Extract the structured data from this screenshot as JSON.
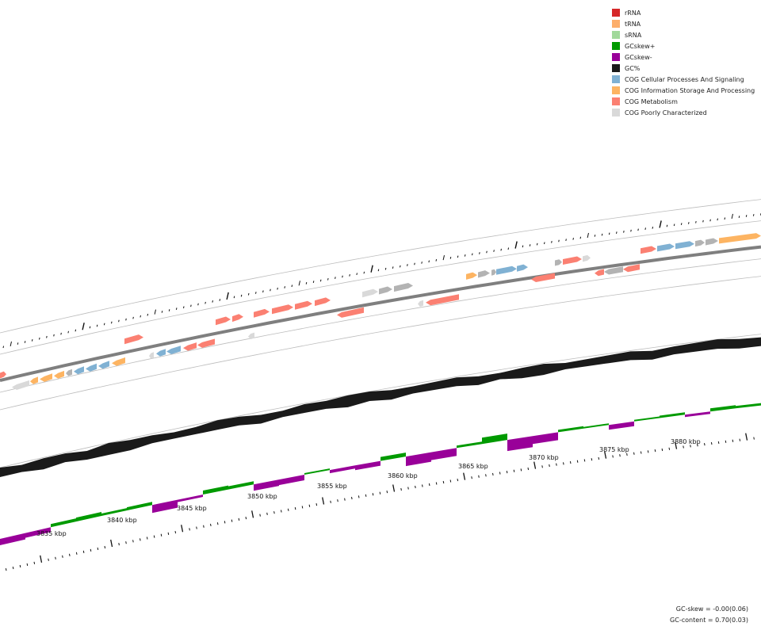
{
  "legend": {
    "items": [
      {
        "label": "rRNA",
        "color": "#d62728"
      },
      {
        "label": "tRNA",
        "color": "#fdae6b"
      },
      {
        "label": "sRNA",
        "color": "#a1d99b"
      },
      {
        "label": "GCskew+",
        "color": "#009a00"
      },
      {
        "label": "GCskew-",
        "color": "#990099"
      },
      {
        "label": "GC%",
        "color": "#1a1a1a"
      },
      {
        "label": "COG Cellular Processes And Signaling",
        "color": "#80b1d3"
      },
      {
        "label": "COG Information Storage And Processing",
        "color": "#fdb462"
      },
      {
        "label": "COG Metabolism",
        "color": "#fb8072"
      },
      {
        "label": "COG Poorly Characterized",
        "color": "#d9d9d9"
      }
    ]
  },
  "axis": {
    "labels": [
      "3835 kbp",
      "3840 kbp",
      "3845 kbp",
      "3850 kbp",
      "3855 kbp",
      "3860 kbp",
      "3865 kbp",
      "3870 kbp",
      "3875 kbp",
      "3880 kbp"
    ],
    "positions_kbp": [
      3835,
      3840,
      3845,
      3850,
      3855,
      3860,
      3865,
      3870,
      3875,
      3880
    ]
  },
  "stats": {
    "gc_skew": "GC-skew = -0.00(0.06)",
    "gc_content": "GC-content = 0.70(0.03)"
  },
  "colors": {
    "backbone": "#7f7f7f",
    "gc_content": "#1a1a1a",
    "skew_pos": "#009a00",
    "skew_neg": "#990099",
    "cog_metabolism": "#fb8072",
    "cog_info": "#fdb462",
    "cog_cellular": "#80b1d3",
    "cog_poor": "#d9d9d9",
    "unclassified": "#b3b3b3"
  }
}
